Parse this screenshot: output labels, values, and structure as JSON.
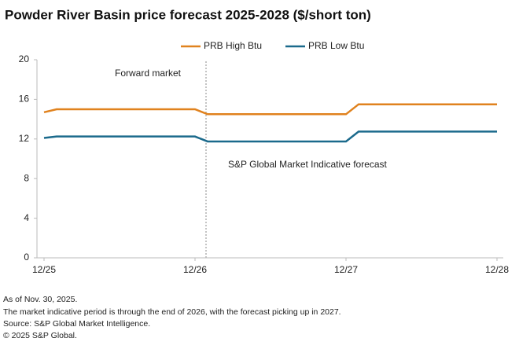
{
  "chart_data": {
    "type": "line",
    "title": "Powder River Basin price forecast 2025-2028 ($/short ton)",
    "x": [
      0,
      1,
      12,
      13,
      24,
      25,
      36
    ],
    "xlim": [
      0,
      36
    ],
    "xticks": [
      {
        "value": 0,
        "label": "12/25"
      },
      {
        "value": 12,
        "label": "12/26"
      },
      {
        "value": 24,
        "label": "12/27"
      },
      {
        "value": 36,
        "label": "12/28"
      }
    ],
    "ylim": [
      0,
      20
    ],
    "yticks": [
      0,
      4,
      8,
      12,
      16,
      20
    ],
    "grid": false,
    "legend": "top",
    "series": [
      {
        "name": "PRB High Btu",
        "color": "#e0821e",
        "values": [
          14.7,
          15.0,
          15.0,
          14.5,
          14.5,
          15.5,
          15.5
        ]
      },
      {
        "name": "PRB Low Btu",
        "color": "#1b6a8c",
        "values": [
          12.1,
          12.25,
          12.25,
          11.75,
          11.75,
          12.75,
          12.75
        ]
      }
    ],
    "annotations": [
      "Forward  market",
      "S&P Global Market Indicative forecast"
    ],
    "notes": [
      "As of Nov. 30, 2025.",
      "The market indicative period is through the end of 2026, with the forecast picking up in 2027.",
      "Source: S&P Global Market Intelligence.",
      "© 2025 S&P Global."
    ]
  }
}
